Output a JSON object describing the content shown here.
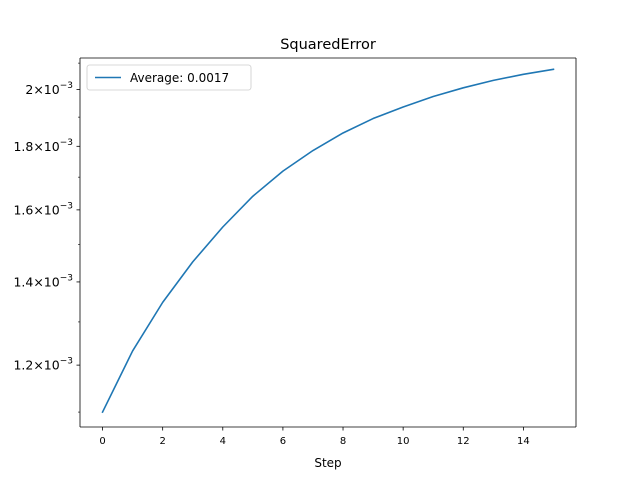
{
  "chart_data": {
    "type": "line",
    "title": "SquaredError",
    "xlabel": "Step",
    "ylabel": "",
    "yscale": "log",
    "x": [
      0,
      1,
      2,
      3,
      4,
      5,
      6,
      7,
      8,
      9,
      10,
      11,
      12,
      13,
      14,
      15
    ],
    "series": [
      {
        "name": "Average: 0.0017",
        "color": "#1f77b4",
        "values": [
          0.0011,
          0.001232,
          0.001348,
          0.001453,
          0.00155,
          0.001641,
          0.001719,
          0.001786,
          0.001845,
          0.001895,
          0.001936,
          0.001974,
          0.002006,
          0.002034,
          0.002057,
          0.002076
        ]
      }
    ],
    "xlim": [
      -0.75,
      15.75
    ],
    "ylim": [
      0.00107,
      0.00212
    ],
    "xticks": [
      0,
      2,
      4,
      6,
      8,
      10,
      12,
      14
    ],
    "yticks": [
      {
        "value": 0.0012,
        "mantissa": "1.2",
        "base": "10",
        "exp": "−3"
      },
      {
        "value": 0.0014,
        "mantissa": "1.4",
        "base": "10",
        "exp": "−3"
      },
      {
        "value": 0.0016,
        "mantissa": "1.6",
        "base": "10",
        "exp": "−3"
      },
      {
        "value": 0.0018,
        "mantissa": "1.8",
        "base": "10",
        "exp": "−3"
      },
      {
        "value": 0.002,
        "mantissa": "2",
        "base": "10",
        "exp": "−3"
      }
    ],
    "grid": false,
    "legend_position": "top-left"
  }
}
